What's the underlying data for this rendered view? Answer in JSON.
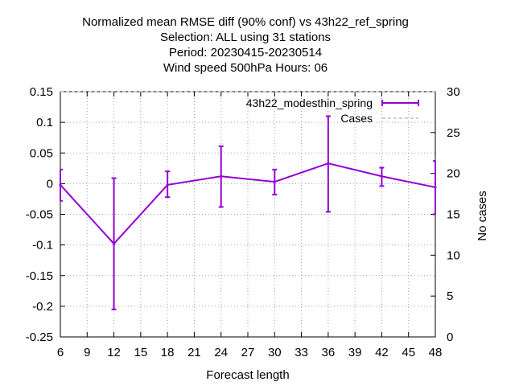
{
  "chart_data": {
    "type": "line",
    "title_lines": [
      "Normalized mean RMSE diff (90% conf) vs 43h22_ref_spring",
      "Selection: ALL using    31 stations",
      "Period: 20230415-20230514",
      "Wind speed 500hPa   Hours:  06"
    ],
    "xlabel": "Forecast length",
    "ylabel": "",
    "y2label": "No cases",
    "xlim": [
      6,
      48
    ],
    "ylim": [
      -0.25,
      0.15
    ],
    "y2lim": [
      0,
      30
    ],
    "xticks": [
      "6",
      "9",
      "12",
      "15",
      "18",
      "21",
      "24",
      "27",
      "30",
      "33",
      "36",
      "39",
      "42",
      "45",
      "48"
    ],
    "yticks": [
      "0.15",
      "0.1",
      "0.05",
      "0",
      "-0.05",
      "-0.1",
      "-0.15",
      "-0.2",
      "-0.25"
    ],
    "y2ticks": [
      "30",
      "25",
      "20",
      "15",
      "10",
      "5",
      "0"
    ],
    "grid": true,
    "legend_position": "top-right",
    "series": [
      {
        "name": "43h22_modesthin_spring",
        "color": "#9400d3",
        "x": [
          6,
          12,
          18,
          24,
          30,
          36,
          42,
          48
        ],
        "y": [
          -0.002,
          -0.098,
          -0.002,
          0.012,
          0.003,
          0.033,
          0.012,
          -0.006
        ],
        "err_low": [
          -0.028,
          -0.205,
          -0.022,
          -0.038,
          -0.018,
          -0.046,
          -0.004,
          -0.05
        ],
        "err_high": [
          0.023,
          0.009,
          0.02,
          0.061,
          0.023,
          0.11,
          0.026,
          0.037
        ]
      },
      {
        "name": "Cases",
        "color": "#a0a0a0",
        "axis": "y2",
        "x": [
          6,
          12,
          18,
          24,
          30,
          36,
          42,
          48
        ],
        "y": [
          30,
          30,
          30,
          30,
          30,
          30,
          30,
          30
        ]
      }
    ]
  }
}
